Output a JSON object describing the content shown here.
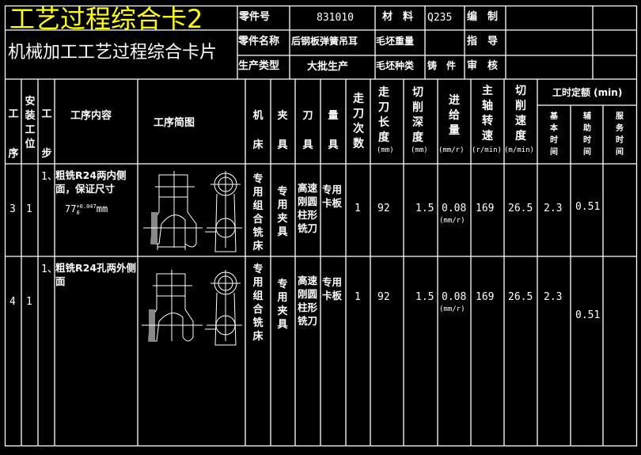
{
  "title": {
    "main": "工艺过程综合卡2",
    "sub": "机械加工工艺过程综合卡片",
    "main_color": "#ffff00"
  },
  "info": {
    "part_no_label": "零件号",
    "part_no": "831010",
    "material_label": "材　料",
    "material": "Q235",
    "compile_label": "编　制",
    "part_name_label": "零件名称",
    "part_name": "后钢板弹簧吊耳",
    "blank_weight_label": "毛坯重量",
    "guide_label": "指　导",
    "prod_type_label": "生产类型",
    "prod_type": "大批生产",
    "blank_type_label": "毛坯种类",
    "blank_type": "铸　件",
    "review_label": "审　核"
  },
  "headers": {
    "op": "工序",
    "station": "安装工位",
    "step": "工步",
    "content": "工序内容",
    "sketch": "工序简图",
    "machine": "机床",
    "fixture": "夹具",
    "tool": "刀具",
    "gauge": "量具",
    "passes": "走刀次数",
    "length": "走刀长度",
    "length_unit": "(mm)",
    "depth": "切削深度",
    "depth_unit": "(mm)",
    "feed": "进给量",
    "feed_unit": "(mm/r)",
    "speed": "主轴转速",
    "speed_unit": "(r/min)",
    "cut_speed": "切削速度",
    "cut_speed_unit": "(m/min)",
    "time": "工时定额 (min)",
    "basic": "基本时间",
    "aux": "辅助时间",
    "service": "服务时间"
  },
  "rows": [
    {
      "op": "3",
      "station": "1",
      "step": "1、",
      "content": "粗铣R24两内侧面，保证尺寸",
      "dim": "77",
      "tol_up": "+0.047",
      "tol_low": "0",
      "dim_unit": "mm",
      "machine": "专用组合铣床",
      "fixture": "专用夹具",
      "tool": "高速刚圆柱形铣刀",
      "gauge": "专用卡板",
      "passes": "1",
      "length": "92",
      "depth": "1.5",
      "feed": "0.08",
      "feed_unit": "(mm/r)",
      "speed": "169",
      "cut_speed": "26.5",
      "basic": "2.3",
      "aux": "0.51"
    },
    {
      "op": "4",
      "station": "1",
      "step": "1、",
      "content": "粗铣R24孔两外侧面",
      "machine": "专用组合铣床",
      "fixture": "专用夹具",
      "tool": "高速刚圆柱形铣刀",
      "gauge": "专用卡板",
      "passes": "1",
      "length": "92",
      "depth": "1.5",
      "feed": "0.08",
      "feed_unit": "(mm/r)",
      "speed": "169",
      "cut_speed": "26.5",
      "basic": "2.3",
      "aux": "0.51"
    }
  ]
}
